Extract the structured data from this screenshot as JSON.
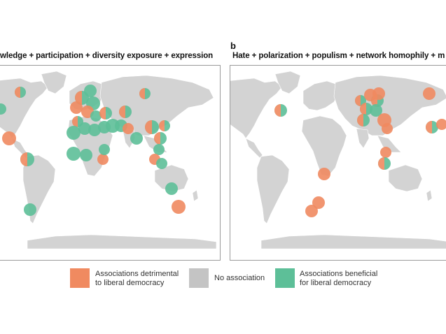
{
  "panel_a": {
    "letter": "",
    "title": "wledge + participation + diversity exposure + expression"
  },
  "panel_b": {
    "letter": "b",
    "title": "Hate + polarization + populism + network homophily + m"
  },
  "legend": {
    "detrimental": {
      "line1": "Associations detrimental",
      "line2": "to liberal democracy",
      "color": "#f08a60"
    },
    "none": {
      "line1": "No association",
      "color": "#c4c4c4"
    },
    "beneficial": {
      "line1": "Associations beneficial",
      "line2": "for liberal democracy",
      "color": "#5dbf98"
    }
  },
  "colors": {
    "land": "#d3d3d3",
    "detrimental": "#f08a60",
    "beneficial": "#5dbf98"
  }
}
